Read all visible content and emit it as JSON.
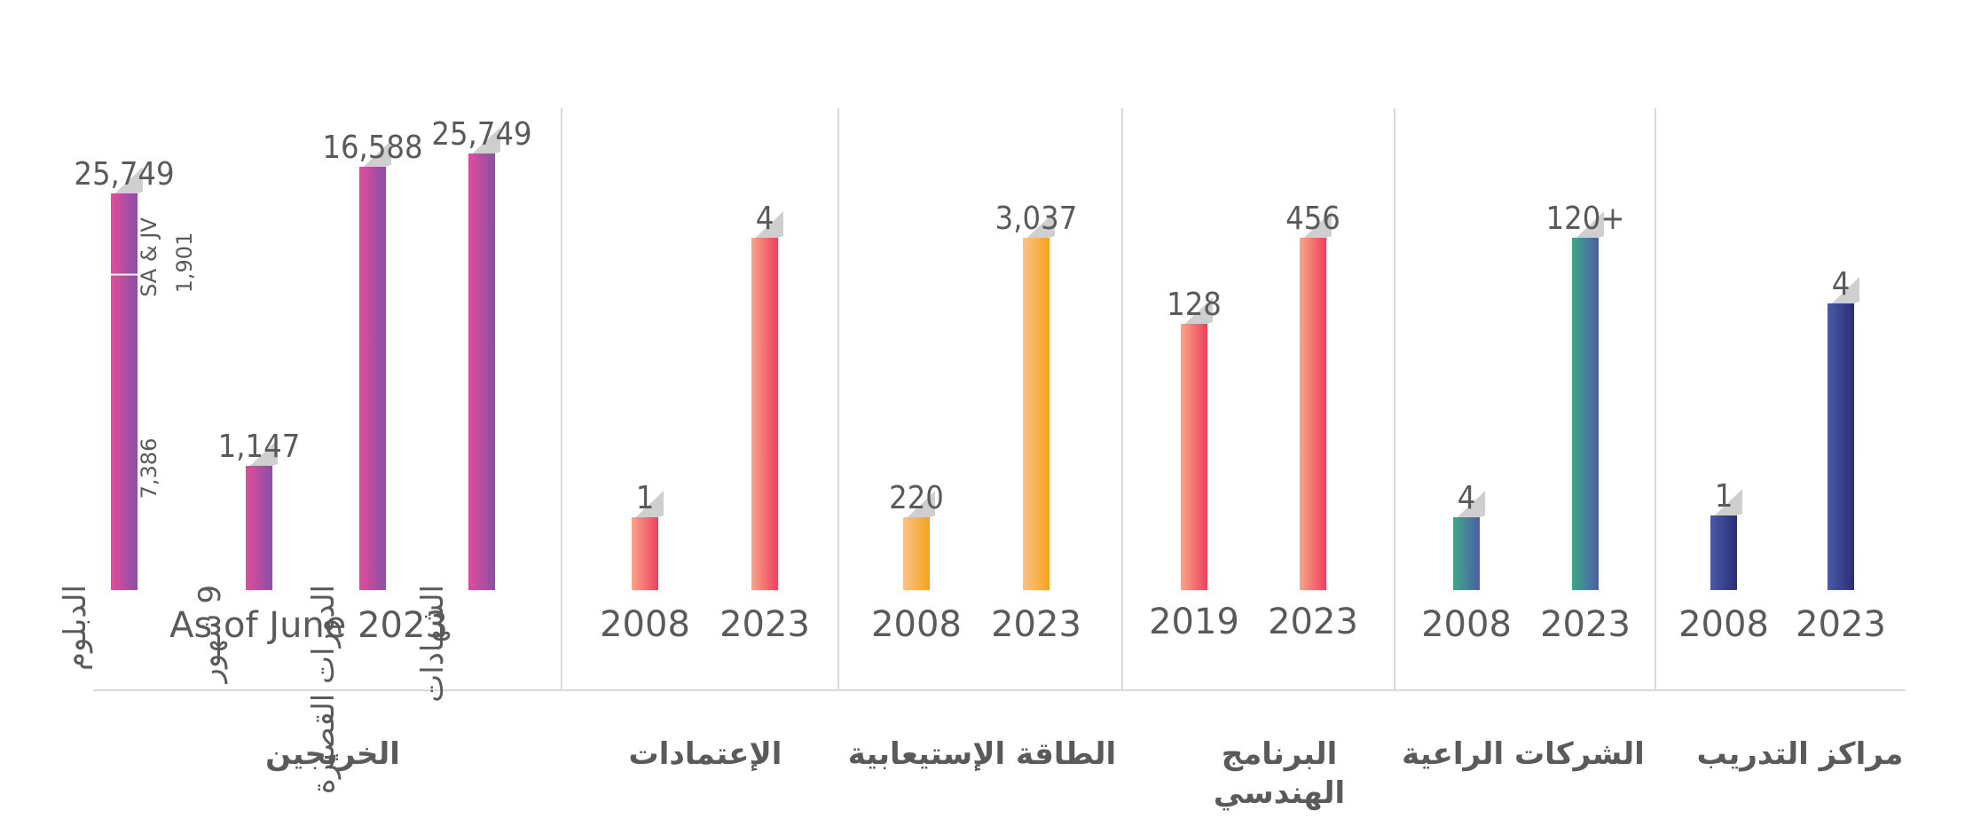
{
  "chart_data": {
    "type": "bar",
    "colors": {
      "magenta": [
        "#e04d9b",
        "#8a4fa6"
      ],
      "coral": [
        "#f9a58a",
        "#ee3f5c"
      ],
      "amber": [
        "#f9c38a",
        "#f6a21b"
      ],
      "teal": [
        "#3fa887",
        "#4a5ea8"
      ],
      "navy": [
        "#4a5aa6",
        "#2b2e78"
      ],
      "tag": "#cfcfcf",
      "axis": "#d9d9d9",
      "text": "#5a5a5a"
    },
    "groups": [
      {
        "name": "الخريجين",
        "caption": "As of June 2023",
        "color": "magenta",
        "bars": [
          {
            "value_label": "25,749",
            "total": 25749,
            "segments": [
              {
                "value": 7386,
                "label": "7,386"
              },
              {
                "value": 1901,
                "label": "1,901",
                "note": "SA & JV"
              }
            ],
            "category": "الدبلوم"
          },
          {
            "value_label": "1,147",
            "total": 1147,
            "category": "9 شهور"
          },
          {
            "value_label": "16,588",
            "total": 16588,
            "category": "الدورات القصيرة"
          },
          {
            "value_label": "25,749",
            "total": 25749,
            "category": "الشهادات"
          }
        ]
      },
      {
        "name": "الإعتمادات",
        "color": "coral",
        "bars": [
          {
            "year": "2008",
            "value_label": "1",
            "value": 1
          },
          {
            "year": "2023",
            "value_label": "4",
            "value": 4
          }
        ]
      },
      {
        "name": "الطاقة الإستيعابية",
        "color": "amber",
        "bars": [
          {
            "year": "2008",
            "value_label": "220",
            "value": 220
          },
          {
            "year": "2023",
            "value_label": "3,037",
            "value": 3037
          }
        ]
      },
      {
        "name": "البرنامج الهندسي",
        "color": "coral",
        "bars": [
          {
            "year": "2019",
            "value_label": "128",
            "value": 128
          },
          {
            "year": "2023",
            "value_label": "456",
            "value": 456
          }
        ]
      },
      {
        "name": "الشركات الراعية",
        "color": "teal",
        "bars": [
          {
            "year": "2008",
            "value_label": "4",
            "value": 4
          },
          {
            "year": "2023",
            "value_label": "120+",
            "value": 120
          }
        ]
      },
      {
        "name": "مراكز التدريب",
        "color": "navy",
        "bars": [
          {
            "year": "2008",
            "value_label": "1",
            "value": 1
          },
          {
            "year": "2023",
            "value_label": "4",
            "value": 4
          }
        ]
      }
    ]
  }
}
